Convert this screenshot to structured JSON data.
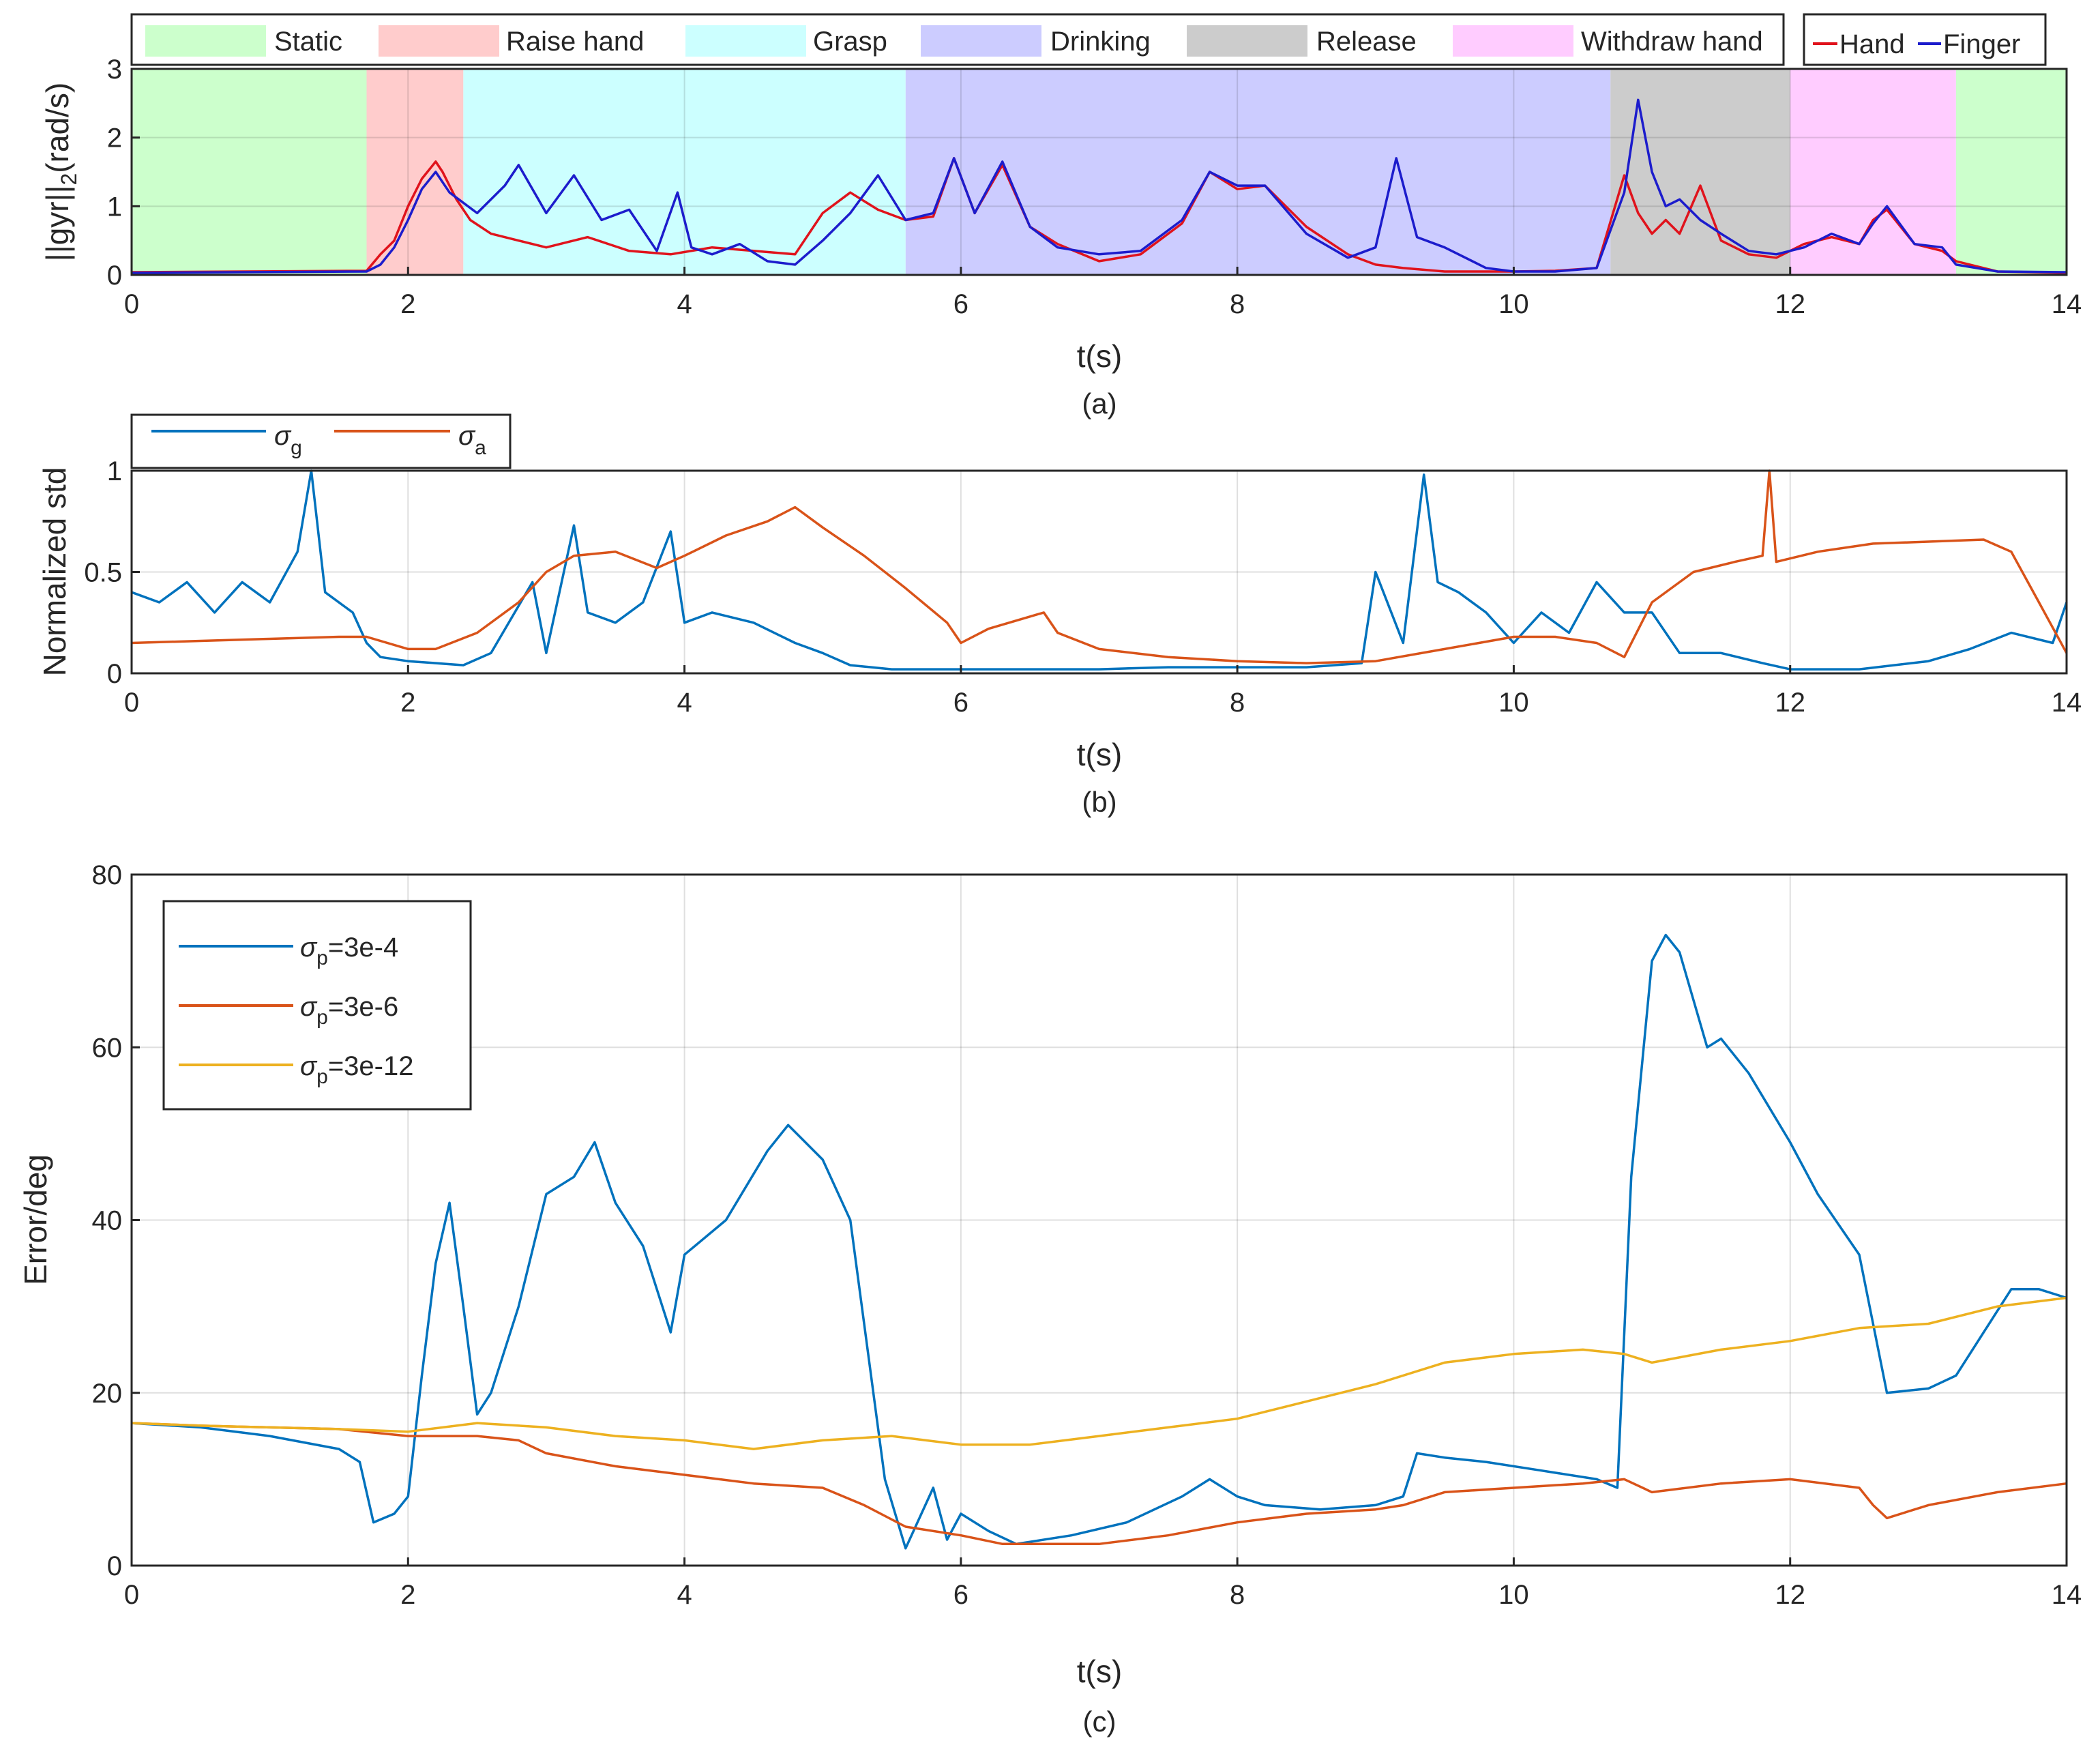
{
  "chart_data": [
    {
      "id": "a",
      "type": "line",
      "caption": "(a)",
      "xlabel": "t(s)",
      "ylabel": "||gyr||2(rad/s)",
      "xlim": [
        0,
        14
      ],
      "ylim": [
        0,
        3
      ],
      "xticks": [
        0,
        2,
        4,
        6,
        8,
        10,
        12,
        14
      ],
      "yticks": [
        0,
        1,
        2,
        3
      ],
      "phases": [
        {
          "name": "Static",
          "start": 0,
          "end": 1.7,
          "color": "#ccffcc"
        },
        {
          "name": "Raise hand",
          "start": 1.7,
          "end": 2.4,
          "color": "#ffcccc"
        },
        {
          "name": "Grasp",
          "start": 2.4,
          "end": 5.6,
          "color": "#ccffff"
        },
        {
          "name": "Drinking",
          "start": 5.6,
          "end": 10.7,
          "color": "#ccccff"
        },
        {
          "name": "Release",
          "start": 10.7,
          "end": 12.0,
          "color": "#cccccc"
        },
        {
          "name": "Withdraw hand",
          "start": 12.0,
          "end": 13.2,
          "color": "#ffccff"
        },
        {
          "name": "Static",
          "start": 13.2,
          "end": 14,
          "color": "#ccffcc",
          "legend": false
        }
      ],
      "series": [
        {
          "name": "Hand",
          "color": "#e0131c",
          "x": [
            0,
            1.7,
            1.8,
            1.9,
            2.0,
            2.1,
            2.2,
            2.25,
            2.35,
            2.45,
            2.6,
            2.8,
            3.0,
            3.3,
            3.6,
            3.9,
            4.2,
            4.5,
            4.8,
            5.0,
            5.2,
            5.4,
            5.6,
            5.8,
            5.95,
            6.1,
            6.3,
            6.5,
            6.7,
            7.0,
            7.3,
            7.6,
            7.8,
            8.0,
            8.2,
            8.5,
            8.8,
            9.0,
            9.2,
            9.5,
            9.8,
            10.0,
            10.3,
            10.6,
            10.8,
            10.9,
            11.0,
            11.1,
            11.2,
            11.35,
            11.5,
            11.7,
            11.9,
            12.1,
            12.3,
            12.5,
            12.6,
            12.7,
            12.9,
            13.1,
            13.2,
            13.5,
            14
          ],
          "values": [
            0.04,
            0.06,
            0.3,
            0.5,
            1.0,
            1.4,
            1.65,
            1.5,
            1.1,
            0.8,
            0.6,
            0.5,
            0.4,
            0.55,
            0.35,
            0.3,
            0.4,
            0.35,
            0.3,
            0.9,
            1.2,
            0.95,
            0.8,
            0.85,
            1.7,
            0.9,
            1.6,
            0.7,
            0.45,
            0.2,
            0.3,
            0.75,
            1.5,
            1.25,
            1.3,
            0.7,
            0.3,
            0.15,
            0.1,
            0.05,
            0.05,
            0.05,
            0.06,
            0.1,
            1.45,
            0.9,
            0.6,
            0.8,
            0.6,
            1.3,
            0.5,
            0.3,
            0.25,
            0.45,
            0.55,
            0.45,
            0.8,
            0.95,
            0.45,
            0.35,
            0.2,
            0.05,
            0.03
          ]
        },
        {
          "name": "Finger",
          "color": "#1c1ccc",
          "x": [
            0,
            1.7,
            1.8,
            1.9,
            2.0,
            2.1,
            2.2,
            2.3,
            2.5,
            2.7,
            2.8,
            3.0,
            3.2,
            3.4,
            3.6,
            3.8,
            3.95,
            4.05,
            4.2,
            4.4,
            4.6,
            4.8,
            5.0,
            5.2,
            5.4,
            5.6,
            5.8,
            5.95,
            6.1,
            6.3,
            6.5,
            6.7,
            7.0,
            7.3,
            7.6,
            7.8,
            8.0,
            8.2,
            8.5,
            8.8,
            9.0,
            9.15,
            9.3,
            9.5,
            9.8,
            10.0,
            10.3,
            10.6,
            10.8,
            10.9,
            11.0,
            11.1,
            11.2,
            11.35,
            11.5,
            11.7,
            11.9,
            12.1,
            12.3,
            12.5,
            12.6,
            12.7,
            12.9,
            13.1,
            13.2,
            13.5,
            14
          ],
          "values": [
            0.03,
            0.05,
            0.15,
            0.4,
            0.8,
            1.25,
            1.5,
            1.2,
            0.9,
            1.3,
            1.6,
            0.9,
            1.45,
            0.8,
            0.95,
            0.35,
            1.2,
            0.4,
            0.3,
            0.45,
            0.2,
            0.15,
            0.5,
            0.9,
            1.45,
            0.8,
            0.9,
            1.7,
            0.9,
            1.65,
            0.7,
            0.4,
            0.3,
            0.35,
            0.8,
            1.5,
            1.3,
            1.3,
            0.6,
            0.25,
            0.4,
            1.7,
            0.55,
            0.4,
            0.1,
            0.05,
            0.05,
            0.1,
            1.2,
            2.55,
            1.5,
            1.0,
            1.1,
            0.8,
            0.6,
            0.35,
            0.3,
            0.4,
            0.6,
            0.45,
            0.75,
            1.0,
            0.45,
            0.4,
            0.15,
            0.05,
            0.04
          ]
        }
      ]
    },
    {
      "id": "b",
      "type": "line",
      "caption": "(b)",
      "xlabel": "t(s)",
      "ylabel": "Normalized std",
      "xlim": [
        0,
        14
      ],
      "ylim": [
        0,
        1
      ],
      "xticks": [
        0,
        2,
        4,
        6,
        8,
        10,
        12,
        14
      ],
      "yticks": [
        0,
        0.5,
        1
      ],
      "legend": {
        "placement": "top-left-outside",
        "entries": [
          {
            "symbol": "σ",
            "sub": "g"
          },
          {
            "symbol": "σ",
            "sub": "a"
          }
        ]
      },
      "series": [
        {
          "name": "σg",
          "color": "#0072bd",
          "x": [
            0,
            0.2,
            0.4,
            0.6,
            0.8,
            1.0,
            1.2,
            1.3,
            1.4,
            1.6,
            1.7,
            1.8,
            2.0,
            2.2,
            2.4,
            2.6,
            2.9,
            3.0,
            3.2,
            3.3,
            3.5,
            3.7,
            3.9,
            4.0,
            4.2,
            4.5,
            4.8,
            5.0,
            5.2,
            5.5,
            6.0,
            6.5,
            7.0,
            7.5,
            8.0,
            8.5,
            8.9,
            9.0,
            9.2,
            9.35,
            9.45,
            9.6,
            9.8,
            10.0,
            10.2,
            10.4,
            10.6,
            10.8,
            11.0,
            11.2,
            11.5,
            11.8,
            12.0,
            12.5,
            13.0,
            13.3,
            13.6,
            13.9,
            14
          ],
          "values": [
            0.4,
            0.35,
            0.45,
            0.3,
            0.45,
            0.35,
            0.6,
            1.0,
            0.4,
            0.3,
            0.15,
            0.08,
            0.06,
            0.05,
            0.04,
            0.1,
            0.45,
            0.1,
            0.73,
            0.3,
            0.25,
            0.35,
            0.7,
            0.25,
            0.3,
            0.25,
            0.15,
            0.1,
            0.04,
            0.02,
            0.02,
            0.02,
            0.02,
            0.03,
            0.03,
            0.03,
            0.05,
            0.5,
            0.15,
            0.98,
            0.45,
            0.4,
            0.3,
            0.15,
            0.3,
            0.2,
            0.45,
            0.3,
            0.3,
            0.1,
            0.1,
            0.05,
            0.02,
            0.02,
            0.06,
            0.12,
            0.2,
            0.15,
            0.35
          ]
        },
        {
          "name": "σa",
          "color": "#d95319",
          "x": [
            0,
            0.5,
            1.0,
            1.5,
            1.7,
            2.0,
            2.2,
            2.5,
            2.8,
            3.0,
            3.2,
            3.5,
            3.8,
            4.0,
            4.3,
            4.6,
            4.8,
            5.0,
            5.3,
            5.6,
            5.9,
            6.0,
            6.2,
            6.5,
            6.6,
            6.7,
            7.0,
            7.5,
            8.0,
            8.5,
            9.0,
            9.5,
            10.0,
            10.3,
            10.6,
            10.8,
            11.0,
            11.3,
            11.6,
            11.8,
            11.85,
            11.9,
            12.2,
            12.6,
            13.0,
            13.4,
            13.6,
            13.8,
            14
          ],
          "values": [
            0.15,
            0.16,
            0.17,
            0.18,
            0.18,
            0.12,
            0.12,
            0.2,
            0.35,
            0.5,
            0.58,
            0.6,
            0.52,
            0.58,
            0.68,
            0.75,
            0.82,
            0.72,
            0.58,
            0.42,
            0.25,
            0.15,
            0.22,
            0.28,
            0.3,
            0.2,
            0.12,
            0.08,
            0.06,
            0.05,
            0.06,
            0.12,
            0.18,
            0.18,
            0.15,
            0.08,
            0.35,
            0.5,
            0.55,
            0.58,
            1.0,
            0.55,
            0.6,
            0.64,
            0.65,
            0.66,
            0.6,
            0.35,
            0.1
          ]
        }
      ]
    },
    {
      "id": "c",
      "type": "line",
      "caption": "(c)",
      "xlabel": "t(s)",
      "ylabel": "Error/deg",
      "xlim": [
        0,
        14
      ],
      "ylim": [
        0,
        80
      ],
      "xticks": [
        0,
        2,
        4,
        6,
        8,
        10,
        12,
        14
      ],
      "yticks": [
        0,
        20,
        40,
        60,
        80
      ],
      "legend": {
        "placement": "top-left",
        "entries": [
          {
            "symbol": "σ",
            "sub": "p",
            "text": "=3e-4"
          },
          {
            "symbol": "σ",
            "sub": "p",
            "text": "=3e-6"
          },
          {
            "symbol": "σ",
            "sub": "p",
            "text": "=3e-12"
          }
        ]
      },
      "series": [
        {
          "name": "σp=3e-4",
          "color": "#0072bd",
          "x": [
            0,
            0.5,
            1.0,
            1.5,
            1.65,
            1.75,
            1.9,
            2.0,
            2.1,
            2.2,
            2.3,
            2.4,
            2.5,
            2.6,
            2.8,
            3.0,
            3.2,
            3.35,
            3.5,
            3.7,
            3.9,
            4.0,
            4.3,
            4.6,
            4.75,
            5.0,
            5.2,
            5.3,
            5.45,
            5.6,
            5.8,
            5.9,
            6.0,
            6.2,
            6.4,
            6.8,
            7.2,
            7.6,
            7.8,
            8.0,
            8.2,
            8.6,
            9.0,
            9.2,
            9.3,
            9.5,
            9.8,
            10.2,
            10.6,
            10.75,
            10.85,
            11.0,
            11.1,
            11.2,
            11.4,
            11.5,
            11.7,
            12.0,
            12.2,
            12.5,
            12.6,
            12.7,
            13.0,
            13.2,
            13.4,
            13.6,
            13.8,
            14
          ],
          "values": [
            16.5,
            16.0,
            15.0,
            13.5,
            12.0,
            5.0,
            6.0,
            8.0,
            22.0,
            35.0,
            42.0,
            30.0,
            17.5,
            20.0,
            30.0,
            43.0,
            45.0,
            49.0,
            42.0,
            37.0,
            27.0,
            36.0,
            40.0,
            48.0,
            51.0,
            47.0,
            40.0,
            28.0,
            10.0,
            2.0,
            9.0,
            3.0,
            6.0,
            4.0,
            2.5,
            3.5,
            5.0,
            8.0,
            10.0,
            8.0,
            7.0,
            6.5,
            7.0,
            8.0,
            13.0,
            12.5,
            12.0,
            11.0,
            10.0,
            9.0,
            45.0,
            70.0,
            73.0,
            71.0,
            60.0,
            61.0,
            57.0,
            49.0,
            43.0,
            36.0,
            28.0,
            20.0,
            20.5,
            22.0,
            27.0,
            32.0,
            32.0,
            31.0
          ]
        },
        {
          "name": "σp=3e-6",
          "color": "#d95319",
          "x": [
            0,
            0.5,
            1.0,
            1.5,
            2.0,
            2.5,
            2.8,
            3.0,
            3.5,
            4.0,
            4.5,
            5.0,
            5.3,
            5.6,
            6.0,
            6.3,
            6.6,
            7.0,
            7.5,
            8.0,
            8.5,
            9.0,
            9.2,
            9.5,
            10.0,
            10.5,
            10.8,
            11.0,
            11.5,
            12.0,
            12.5,
            12.6,
            12.7,
            13.0,
            13.5,
            14
          ],
          "values": [
            16.5,
            16.2,
            16.0,
            15.8,
            15.0,
            15.0,
            14.5,
            13.0,
            11.5,
            10.5,
            9.5,
            9.0,
            7.0,
            4.5,
            3.5,
            2.5,
            2.5,
            2.5,
            3.5,
            5.0,
            6.0,
            6.5,
            7.0,
            8.5,
            9.0,
            9.5,
            10.0,
            8.5,
            9.5,
            10.0,
            9.0,
            7.0,
            5.5,
            7.0,
            8.5,
            9.5
          ]
        },
        {
          "name": "σp=3e-12",
          "color": "#edb120",
          "x": [
            0,
            0.5,
            1.0,
            1.5,
            2.0,
            2.5,
            3.0,
            3.5,
            4.0,
            4.5,
            5.0,
            5.5,
            6.0,
            6.5,
            7.0,
            7.5,
            8.0,
            8.5,
            9.0,
            9.5,
            10.0,
            10.5,
            10.8,
            11.0,
            11.5,
            12.0,
            12.5,
            13.0,
            13.5,
            14
          ],
          "values": [
            16.5,
            16.2,
            16.0,
            15.8,
            15.5,
            16.5,
            16.0,
            15.0,
            14.5,
            13.5,
            14.5,
            15.0,
            14.0,
            14.0,
            15.0,
            16.0,
            17.0,
            19.0,
            21.0,
            23.5,
            24.5,
            25.0,
            24.5,
            23.5,
            25.0,
            26.0,
            27.5,
            28.0,
            30.0,
            31.0
          ]
        }
      ]
    }
  ]
}
